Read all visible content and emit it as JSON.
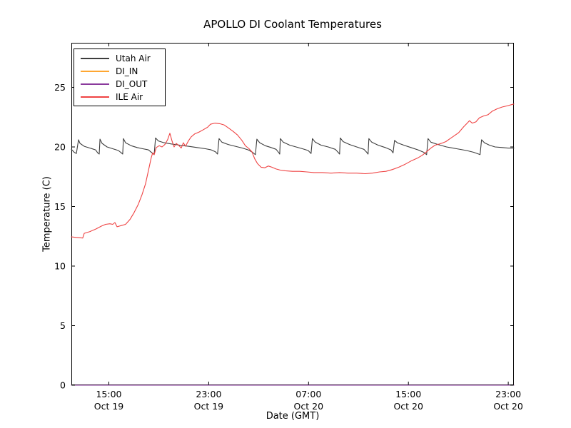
{
  "chart_data": {
    "type": "line",
    "title": "APOLLO DI Coolant Temperatures",
    "xlabel": "Date (GMT)",
    "ylabel": "Temperature (C)",
    "grid": false,
    "legend_position": "upper left",
    "frame_color": "#000000",
    "x_unit_note": "hours since Oct 19 00:00 GMT",
    "xlim": [
      12.0,
      47.45
    ],
    "ylim": [
      0,
      28.74
    ],
    "y_ticks": [
      0,
      5,
      10,
      15,
      20,
      25
    ],
    "x_ticks": [
      {
        "t": 15,
        "time": "15:00",
        "date": "Oct 19"
      },
      {
        "t": 23,
        "time": "23:00",
        "date": "Oct 19"
      },
      {
        "t": 31,
        "time": "07:00",
        "date": "Oct 20"
      },
      {
        "t": 39,
        "time": "15:00",
        "date": "Oct 20"
      },
      {
        "t": 47,
        "time": "23:00",
        "date": "Oct 20"
      }
    ],
    "series": [
      {
        "name": "Utah Air",
        "color": "#3d3d3d",
        "points": [
          [
            12.0,
            19.8
          ],
          [
            12.23,
            19.55
          ],
          [
            12.4,
            19.45
          ],
          [
            12.57,
            20.6
          ],
          [
            12.69,
            20.3
          ],
          [
            13.03,
            20.05
          ],
          [
            13.49,
            19.9
          ],
          [
            13.94,
            19.75
          ],
          [
            14.11,
            19.5
          ],
          [
            14.23,
            19.4
          ],
          [
            14.29,
            20.65
          ],
          [
            14.46,
            20.3
          ],
          [
            14.86,
            20.0
          ],
          [
            15.31,
            19.85
          ],
          [
            15.77,
            19.7
          ],
          [
            16.0,
            19.5
          ],
          [
            16.11,
            19.4
          ],
          [
            16.17,
            20.7
          ],
          [
            16.34,
            20.35
          ],
          [
            16.8,
            20.1
          ],
          [
            17.26,
            19.95
          ],
          [
            17.71,
            19.85
          ],
          [
            18.17,
            19.75
          ],
          [
            18.46,
            19.5
          ],
          [
            18.63,
            19.35
          ],
          [
            18.74,
            20.75
          ],
          [
            18.97,
            20.5
          ],
          [
            19.43,
            20.35
          ],
          [
            20.0,
            20.25
          ],
          [
            20.69,
            20.15
          ],
          [
            21.37,
            20.05
          ],
          [
            22.06,
            19.95
          ],
          [
            22.74,
            19.85
          ],
          [
            23.2,
            19.75
          ],
          [
            23.54,
            19.6
          ],
          [
            23.71,
            19.4
          ],
          [
            23.83,
            20.7
          ],
          [
            24.06,
            20.4
          ],
          [
            24.57,
            20.2
          ],
          [
            25.14,
            20.05
          ],
          [
            25.71,
            19.9
          ],
          [
            26.17,
            19.75
          ],
          [
            26.51,
            19.55
          ],
          [
            26.74,
            19.35
          ],
          [
            26.86,
            20.65
          ],
          [
            27.09,
            20.35
          ],
          [
            27.54,
            20.1
          ],
          [
            28.0,
            19.95
          ],
          [
            28.4,
            19.8
          ],
          [
            28.63,
            19.5
          ],
          [
            28.69,
            19.4
          ],
          [
            28.74,
            20.7
          ],
          [
            28.97,
            20.4
          ],
          [
            29.49,
            20.15
          ],
          [
            30.0,
            20.0
          ],
          [
            30.51,
            19.85
          ],
          [
            30.97,
            19.7
          ],
          [
            31.2,
            19.45
          ],
          [
            31.31,
            20.7
          ],
          [
            31.54,
            20.4
          ],
          [
            32.0,
            20.15
          ],
          [
            32.57,
            20.0
          ],
          [
            33.14,
            19.8
          ],
          [
            33.37,
            19.55
          ],
          [
            33.49,
            19.4
          ],
          [
            33.54,
            20.75
          ],
          [
            33.77,
            20.45
          ],
          [
            34.29,
            20.2
          ],
          [
            34.86,
            20.0
          ],
          [
            35.43,
            19.8
          ],
          [
            35.66,
            19.55
          ],
          [
            35.77,
            19.4
          ],
          [
            35.83,
            20.7
          ],
          [
            36.06,
            20.4
          ],
          [
            36.57,
            20.15
          ],
          [
            37.14,
            19.95
          ],
          [
            37.6,
            19.75
          ],
          [
            37.77,
            19.5
          ],
          [
            37.89,
            20.55
          ],
          [
            38.11,
            20.35
          ],
          [
            38.63,
            20.15
          ],
          [
            39.2,
            19.95
          ],
          [
            39.77,
            19.75
          ],
          [
            40.23,
            19.55
          ],
          [
            40.46,
            19.35
          ],
          [
            40.57,
            20.7
          ],
          [
            40.8,
            20.4
          ],
          [
            41.37,
            20.2
          ],
          [
            42.06,
            20.0
          ],
          [
            42.86,
            19.85
          ],
          [
            43.66,
            19.7
          ],
          [
            44.23,
            19.55
          ],
          [
            44.63,
            19.4
          ],
          [
            44.74,
            19.35
          ],
          [
            44.86,
            20.6
          ],
          [
            45.09,
            20.35
          ],
          [
            45.49,
            20.15
          ],
          [
            45.94,
            20.0
          ],
          [
            46.51,
            19.95
          ],
          [
            46.97,
            19.9
          ],
          [
            47.45,
            19.9
          ]
        ]
      },
      {
        "name": "DI_IN",
        "color": "#ffa732",
        "points": [
          [
            12.0,
            0
          ],
          [
            47.45,
            0
          ]
        ]
      },
      {
        "name": "DI_OUT",
        "color": "#8a3a9c",
        "points": [
          [
            12.0,
            0
          ],
          [
            47.45,
            0
          ]
        ]
      },
      {
        "name": "ILE Air",
        "color": "#ef4343",
        "points": [
          [
            12.0,
            12.45
          ],
          [
            12.46,
            12.4
          ],
          [
            12.91,
            12.35
          ],
          [
            13.03,
            12.75
          ],
          [
            13.49,
            12.9
          ],
          [
            13.94,
            13.1
          ],
          [
            14.4,
            13.35
          ],
          [
            14.74,
            13.5
          ],
          [
            15.09,
            13.55
          ],
          [
            15.31,
            13.5
          ],
          [
            15.49,
            13.65
          ],
          [
            15.66,
            13.3
          ],
          [
            16.0,
            13.4
          ],
          [
            16.34,
            13.5
          ],
          [
            16.69,
            13.9
          ],
          [
            17.03,
            14.5
          ],
          [
            17.37,
            15.2
          ],
          [
            17.66,
            16.0
          ],
          [
            17.94,
            16.9
          ],
          [
            18.17,
            18.0
          ],
          [
            18.4,
            19.1
          ],
          [
            18.51,
            19.5
          ],
          [
            18.63,
            19.35
          ],
          [
            18.8,
            19.95
          ],
          [
            19.03,
            20.1
          ],
          [
            19.26,
            20.0
          ],
          [
            19.49,
            20.2
          ],
          [
            19.71,
            20.6
          ],
          [
            19.89,
            21.15
          ],
          [
            20.06,
            20.5
          ],
          [
            20.23,
            20.0
          ],
          [
            20.4,
            20.3
          ],
          [
            20.63,
            20.1
          ],
          [
            20.8,
            19.9
          ],
          [
            20.97,
            20.35
          ],
          [
            21.14,
            20.05
          ],
          [
            21.37,
            20.5
          ],
          [
            21.6,
            20.85
          ],
          [
            21.89,
            21.1
          ],
          [
            22.23,
            21.25
          ],
          [
            22.57,
            21.45
          ],
          [
            22.91,
            21.65
          ],
          [
            23.14,
            21.9
          ],
          [
            23.49,
            22.0
          ],
          [
            23.89,
            21.95
          ],
          [
            24.23,
            21.85
          ],
          [
            24.57,
            21.6
          ],
          [
            24.97,
            21.3
          ],
          [
            25.31,
            21.0
          ],
          [
            25.66,
            20.55
          ],
          [
            25.94,
            20.1
          ],
          [
            26.23,
            19.85
          ],
          [
            26.46,
            19.6
          ],
          [
            26.69,
            19.0
          ],
          [
            26.91,
            18.6
          ],
          [
            27.2,
            18.3
          ],
          [
            27.49,
            18.25
          ],
          [
            27.77,
            18.4
          ],
          [
            28.06,
            18.3
          ],
          [
            28.4,
            18.15
          ],
          [
            28.74,
            18.05
          ],
          [
            29.14,
            18.0
          ],
          [
            29.71,
            17.95
          ],
          [
            30.29,
            17.95
          ],
          [
            30.86,
            17.9
          ],
          [
            31.43,
            17.85
          ],
          [
            32.11,
            17.85
          ],
          [
            32.8,
            17.8
          ],
          [
            33.49,
            17.85
          ],
          [
            34.17,
            17.8
          ],
          [
            34.86,
            17.8
          ],
          [
            35.54,
            17.75
          ],
          [
            36.11,
            17.8
          ],
          [
            36.69,
            17.9
          ],
          [
            37.2,
            17.95
          ],
          [
            37.71,
            18.1
          ],
          [
            38.23,
            18.3
          ],
          [
            38.74,
            18.55
          ],
          [
            39.26,
            18.85
          ],
          [
            39.71,
            19.05
          ],
          [
            40.11,
            19.3
          ],
          [
            40.46,
            19.6
          ],
          [
            40.8,
            19.9
          ],
          [
            41.14,
            20.15
          ],
          [
            41.49,
            20.25
          ],
          [
            41.77,
            20.35
          ],
          [
            42.0,
            20.45
          ],
          [
            42.34,
            20.7
          ],
          [
            42.69,
            20.95
          ],
          [
            43.03,
            21.2
          ],
          [
            43.43,
            21.7
          ],
          [
            43.71,
            22.0
          ],
          [
            43.89,
            22.2
          ],
          [
            44.11,
            22.0
          ],
          [
            44.4,
            22.1
          ],
          [
            44.69,
            22.45
          ],
          [
            45.03,
            22.6
          ],
          [
            45.37,
            22.7
          ],
          [
            45.71,
            23.0
          ],
          [
            46.11,
            23.2
          ],
          [
            46.51,
            23.35
          ],
          [
            46.91,
            23.45
          ],
          [
            47.26,
            23.55
          ],
          [
            47.45,
            23.6
          ]
        ]
      }
    ]
  }
}
